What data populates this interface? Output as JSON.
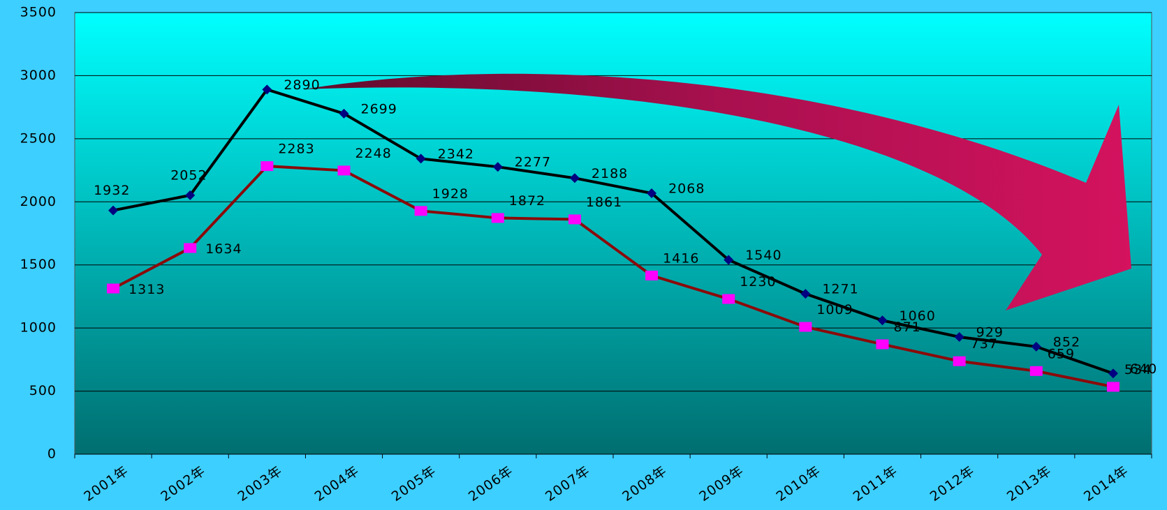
{
  "chart_data": {
    "type": "line",
    "categories": [
      "2001年",
      "2002年",
      "2003年",
      "2004年",
      "2005年",
      "2006年",
      "2007年",
      "2008年",
      "2009年",
      "2010年",
      "2011年",
      "2012年",
      "2013年",
      "2014年"
    ],
    "series": [
      {
        "color": "#000000",
        "marker_color": "#000080",
        "marker": "diamond",
        "values": [
          1932,
          2052,
          2890,
          2699,
          2342,
          2277,
          2188,
          2068,
          1540,
          1271,
          1060,
          929,
          852,
          640
        ]
      },
      {
        "color": "#8b0a0a",
        "marker_color": "#ff00ff",
        "marker": "square",
        "values": [
          1313,
          1634,
          2283,
          2248,
          1928,
          1872,
          1861,
          1416,
          1230,
          1009,
          871,
          737,
          659,
          534
        ]
      }
    ],
    "ylim": [
      0,
      3500
    ],
    "yticks": [
      0,
      500,
      1000,
      1500,
      2000,
      2500,
      3000,
      3500
    ],
    "grid": true
  }
}
